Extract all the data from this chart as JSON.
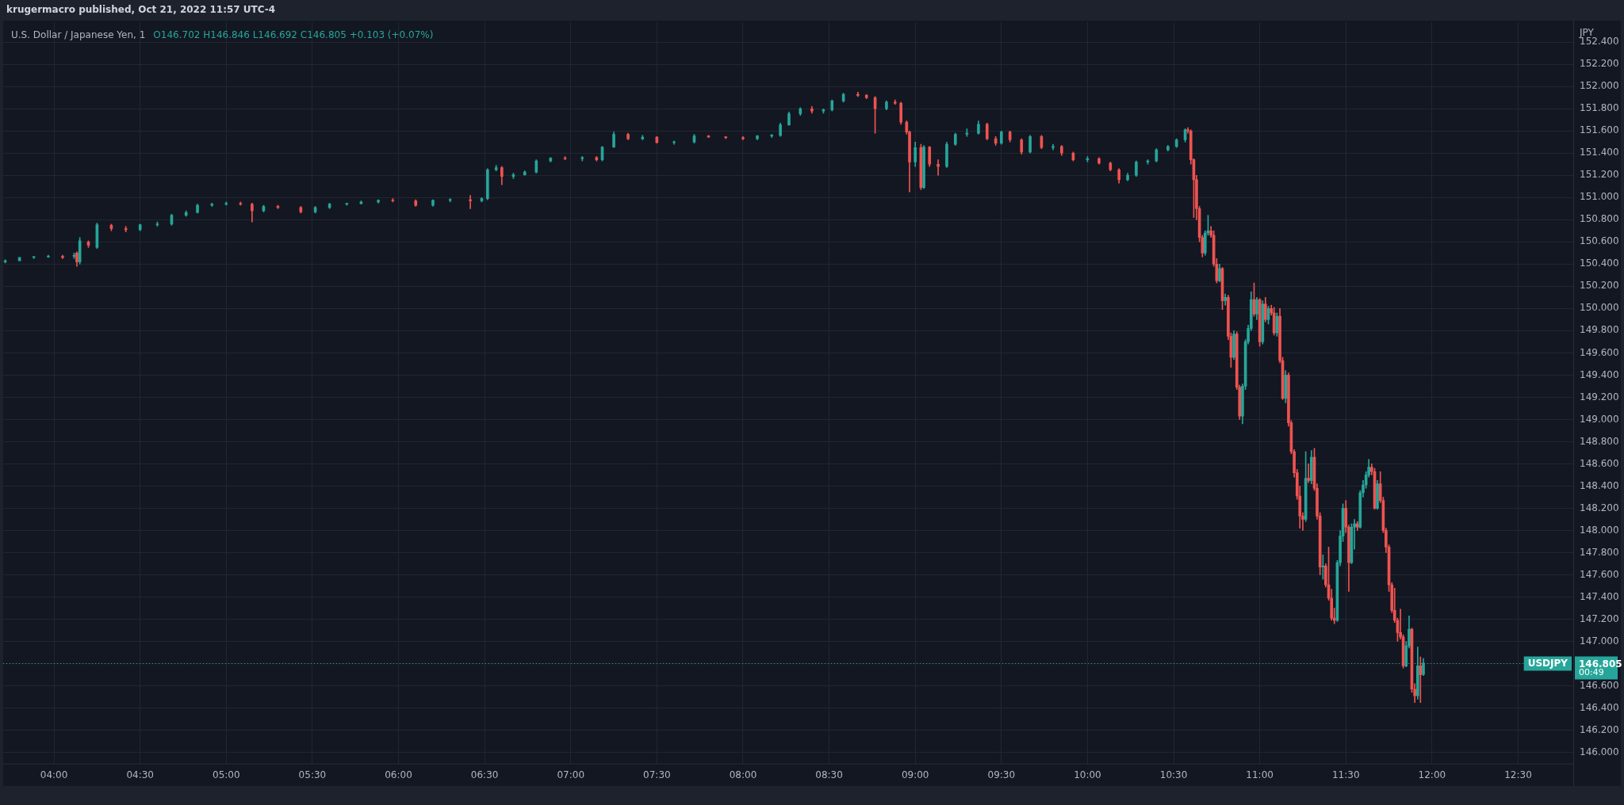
{
  "chart_data": {
    "type": "candlestick",
    "title": "U.S. Dollar / Japanese Yen, 1",
    "ylabel": "JPY",
    "annotations": [
      "krugermacro published, Oct 21, 2022 11:57 UTC-4",
      "O146.702 H146.846 L146.692 C146.805 +0.103 (+0.07%)",
      "00:49",
      "146.805"
    ],
    "x": [
      3.717,
      3.8,
      3.883,
      3.967,
      4.05,
      4.117,
      4.133,
      4.15,
      4.2,
      4.25,
      4.333,
      4.417,
      4.5,
      4.6,
      4.683,
      4.767,
      4.833,
      4.917,
      5.0,
      5.083,
      5.15,
      5.217,
      5.3,
      5.433,
      5.517,
      5.6,
      5.7,
      5.783,
      5.883,
      5.967,
      6.1,
      6.2,
      6.3,
      6.417,
      6.483,
      6.517,
      6.567,
      6.6,
      6.667,
      6.733,
      6.8,
      6.883,
      6.967,
      7.067,
      7.15,
      7.183,
      7.25,
      7.333,
      7.417,
      7.5,
      7.6,
      7.717,
      7.8,
      7.9,
      8.0,
      8.083,
      8.167,
      8.217,
      8.267,
      8.333,
      8.4,
      8.467,
      8.517,
      8.583,
      8.667,
      8.717,
      8.767,
      8.833,
      8.883,
      8.917,
      8.95,
      8.967,
      9.0,
      9.033,
      9.05,
      9.083,
      9.133,
      9.183,
      9.233,
      9.3,
      9.367,
      9.417,
      9.467,
      9.5,
      9.55,
      9.617,
      9.667,
      9.733,
      9.8,
      9.85,
      9.917,
      10.0,
      10.067,
      10.133,
      10.183,
      10.233,
      10.283,
      10.35,
      10.4,
      10.467,
      10.517,
      10.567,
      10.583,
      10.6,
      10.617,
      10.633,
      10.65,
      10.667,
      10.683,
      10.7,
      10.717,
      10.733,
      10.75,
      10.767,
      10.783,
      10.8,
      10.817,
      10.833,
      10.85,
      10.867,
      10.883,
      10.9,
      10.917,
      10.933,
      10.95,
      10.967,
      10.983,
      11.0,
      11.017,
      11.033,
      11.05,
      11.067,
      11.083,
      11.1,
      11.117,
      11.133,
      11.15,
      11.167,
      11.183,
      11.2,
      11.217,
      11.233,
      11.25,
      11.267,
      11.283,
      11.3,
      11.317,
      11.333,
      11.35,
      11.367,
      11.383,
      11.4,
      11.417,
      11.433,
      11.45,
      11.467,
      11.483,
      11.5,
      11.517,
      11.533,
      11.55,
      11.567,
      11.583,
      11.6,
      11.617,
      11.633,
      11.65,
      11.667,
      11.683,
      11.7,
      11.717,
      11.733,
      11.75,
      11.767,
      11.783,
      11.8,
      11.817,
      11.833,
      11.85,
      11.867,
      11.883,
      11.9,
      11.917,
      11.933,
      11.95
    ],
    "ohlc": [
      [
        150.42,
        150.44,
        150.41,
        150.43
      ],
      [
        150.43,
        150.46,
        150.43,
        150.46
      ],
      [
        150.46,
        150.47,
        150.45,
        150.465
      ],
      [
        150.465,
        150.48,
        150.46,
        150.47
      ],
      [
        150.47,
        150.48,
        150.45,
        150.46
      ],
      [
        150.47,
        150.5,
        150.45,
        150.48
      ],
      [
        150.5,
        150.51,
        150.38,
        150.42
      ],
      [
        150.42,
        150.64,
        150.4,
        150.61
      ],
      [
        150.6,
        150.61,
        150.55,
        150.57
      ],
      [
        150.55,
        150.77,
        150.54,
        150.755
      ],
      [
        150.75,
        150.76,
        150.7,
        150.72
      ],
      [
        150.72,
        150.74,
        150.69,
        150.71
      ],
      [
        150.71,
        150.76,
        150.7,
        150.755
      ],
      [
        150.755,
        150.78,
        150.74,
        150.76
      ],
      [
        150.76,
        150.85,
        150.75,
        150.84
      ],
      [
        150.84,
        150.88,
        150.83,
        150.865
      ],
      [
        150.865,
        150.94,
        150.86,
        150.93
      ],
      [
        150.93,
        150.95,
        150.92,
        150.94
      ],
      [
        150.94,
        150.96,
        150.93,
        150.945
      ],
      [
        150.945,
        150.96,
        150.93,
        150.94
      ],
      [
        150.94,
        150.95,
        150.78,
        150.88
      ],
      [
        150.88,
        150.93,
        150.87,
        150.92
      ],
      [
        150.92,
        150.93,
        150.9,
        150.91
      ],
      [
        150.91,
        150.92,
        150.86,
        150.87
      ],
      [
        150.87,
        150.92,
        150.86,
        150.91
      ],
      [
        150.91,
        150.95,
        150.9,
        150.94
      ],
      [
        150.94,
        150.95,
        150.93,
        150.945
      ],
      [
        150.945,
        150.97,
        150.94,
        150.96
      ],
      [
        150.96,
        150.98,
        150.95,
        150.975
      ],
      [
        150.975,
        150.99,
        150.96,
        150.97
      ],
      [
        150.97,
        150.98,
        150.92,
        150.93
      ],
      [
        150.93,
        150.98,
        150.92,
        150.975
      ],
      [
        150.975,
        150.99,
        150.96,
        150.98
      ],
      [
        150.98,
        151.02,
        150.9,
        150.97
      ],
      [
        150.97,
        151.0,
        150.96,
        150.99
      ],
      [
        150.99,
        151.26,
        150.98,
        151.25
      ],
      [
        151.25,
        151.29,
        151.24,
        151.27
      ],
      [
        151.27,
        151.28,
        151.115,
        151.19
      ],
      [
        151.19,
        151.22,
        151.17,
        151.205
      ],
      [
        151.205,
        151.24,
        151.2,
        151.23
      ],
      [
        151.23,
        151.34,
        151.22,
        151.33
      ],
      [
        151.33,
        151.36,
        151.32,
        151.355
      ],
      [
        151.355,
        151.37,
        151.34,
        151.35
      ],
      [
        151.35,
        151.37,
        151.33,
        151.36
      ],
      [
        151.36,
        151.37,
        151.33,
        151.34
      ],
      [
        151.34,
        151.46,
        151.33,
        151.455
      ],
      [
        151.455,
        151.59,
        151.45,
        151.57
      ],
      [
        151.57,
        151.58,
        151.52,
        151.53
      ],
      [
        151.53,
        151.56,
        151.52,
        151.545
      ],
      [
        151.545,
        151.55,
        151.49,
        151.495
      ],
      [
        151.495,
        151.51,
        151.48,
        151.5
      ],
      [
        151.5,
        151.57,
        151.49,
        151.555
      ],
      [
        151.555,
        151.56,
        151.54,
        151.545
      ],
      [
        151.545,
        151.55,
        151.53,
        151.54
      ],
      [
        151.54,
        151.55,
        151.52,
        151.53
      ],
      [
        151.53,
        151.56,
        151.52,
        151.555
      ],
      [
        151.555,
        151.57,
        151.54,
        151.56
      ],
      [
        151.56,
        151.67,
        151.55,
        151.655
      ],
      [
        151.655,
        151.77,
        151.65,
        151.755
      ],
      [
        151.755,
        151.81,
        151.74,
        151.8
      ],
      [
        151.8,
        151.82,
        151.76,
        151.78
      ],
      [
        151.78,
        151.8,
        151.76,
        151.79
      ],
      [
        151.79,
        151.88,
        151.78,
        151.87
      ],
      [
        151.87,
        151.94,
        151.86,
        151.93
      ],
      [
        151.93,
        151.95,
        151.91,
        151.92
      ],
      [
        151.92,
        151.93,
        151.89,
        151.9
      ],
      [
        151.9,
        151.91,
        151.58,
        151.8
      ],
      [
        151.8,
        151.87,
        151.79,
        151.86
      ],
      [
        151.86,
        151.88,
        151.84,
        151.85
      ],
      [
        151.85,
        151.86,
        151.66,
        151.68
      ],
      [
        151.68,
        151.69,
        151.57,
        151.59
      ],
      [
        151.59,
        151.6,
        151.05,
        151.32
      ],
      [
        151.32,
        151.5,
        151.28,
        151.45
      ],
      [
        151.45,
        151.48,
        151.07,
        151.09
      ],
      [
        151.09,
        151.47,
        151.08,
        151.455
      ],
      [
        151.455,
        151.46,
        151.28,
        151.3
      ],
      [
        151.3,
        151.34,
        151.2,
        151.28
      ],
      [
        151.28,
        151.5,
        151.27,
        151.48
      ],
      [
        151.48,
        151.58,
        151.47,
        151.57
      ],
      [
        151.57,
        151.62,
        151.55,
        151.58
      ],
      [
        151.58,
        151.69,
        151.57,
        151.66
      ],
      [
        151.66,
        151.67,
        151.52,
        151.53
      ],
      [
        151.53,
        151.55,
        151.47,
        151.49
      ],
      [
        151.49,
        151.6,
        151.48,
        151.59
      ],
      [
        151.59,
        151.6,
        151.5,
        151.52
      ],
      [
        151.52,
        151.53,
        151.39,
        151.41
      ],
      [
        151.41,
        151.56,
        151.4,
        151.55
      ],
      [
        151.55,
        151.56,
        151.44,
        151.45
      ],
      [
        151.45,
        151.48,
        151.43,
        151.46
      ],
      [
        151.46,
        151.47,
        151.38,
        151.4
      ],
      [
        151.4,
        151.41,
        151.33,
        151.34
      ],
      [
        151.34,
        151.37,
        151.32,
        151.35
      ],
      [
        151.35,
        151.36,
        151.3,
        151.31
      ],
      [
        151.31,
        151.32,
        151.24,
        151.25
      ],
      [
        151.25,
        151.26,
        151.13,
        151.16
      ],
      [
        151.16,
        151.22,
        151.15,
        151.2
      ],
      [
        151.2,
        151.33,
        151.19,
        151.32
      ],
      [
        151.32,
        151.34,
        151.3,
        151.33
      ],
      [
        151.33,
        151.44,
        151.32,
        151.43
      ],
      [
        151.43,
        151.47,
        151.42,
        151.46
      ],
      [
        151.46,
        151.53,
        151.45,
        151.52
      ],
      [
        151.52,
        151.62,
        151.5,
        151.61
      ],
      [
        151.61,
        151.63,
        151.58,
        151.6
      ],
      [
        151.6,
        151.61,
        151.3,
        151.34
      ],
      [
        151.34,
        151.35,
        150.82,
        151.16
      ],
      [
        151.16,
        151.2,
        150.8,
        150.9
      ],
      [
        150.9,
        150.92,
        150.6,
        150.64
      ],
      [
        150.64,
        150.66,
        150.465,
        150.5
      ],
      [
        150.5,
        150.7,
        150.48,
        150.68
      ],
      [
        150.68,
        150.84,
        150.66,
        150.7
      ],
      [
        150.7,
        150.74,
        150.64,
        150.66
      ],
      [
        150.66,
        150.7,
        150.38,
        150.4
      ],
      [
        150.4,
        150.45,
        150.23,
        150.25
      ],
      [
        150.25,
        150.4,
        150.24,
        150.36
      ],
      [
        150.36,
        150.37,
        149.99,
        150.07
      ],
      [
        150.07,
        150.13,
        150.03,
        150.1
      ],
      [
        150.1,
        150.12,
        149.72,
        149.75
      ],
      [
        149.75,
        149.78,
        149.47,
        149.56
      ],
      [
        149.56,
        149.8,
        149.54,
        149.77
      ],
      [
        149.77,
        149.79,
        149.27,
        149.29
      ],
      [
        149.29,
        149.31,
        149.0,
        149.03
      ],
      [
        149.03,
        149.32,
        148.96,
        149.3
      ],
      [
        149.3,
        149.72,
        149.27,
        149.7
      ],
      [
        149.7,
        149.85,
        149.68,
        149.82
      ],
      [
        149.82,
        150.15,
        149.8,
        150.08
      ],
      [
        150.08,
        150.23,
        149.93,
        149.95
      ],
      [
        149.95,
        150.1,
        149.9,
        150.08
      ],
      [
        150.08,
        150.09,
        149.66,
        149.7
      ],
      [
        149.7,
        150.07,
        149.68,
        150.04
      ],
      [
        150.04,
        150.1,
        149.88,
        149.9
      ],
      [
        149.9,
        150.02,
        149.86,
        150.0
      ],
      [
        150.0,
        150.03,
        149.94,
        149.96
      ],
      [
        149.96,
        150.01,
        149.76,
        149.78
      ],
      [
        149.78,
        149.96,
        149.75,
        149.93
      ],
      [
        149.93,
        150.0,
        149.51,
        149.53
      ],
      [
        149.53,
        149.56,
        149.18,
        149.19
      ],
      [
        149.19,
        149.44,
        149.15,
        149.4
      ],
      [
        149.4,
        149.42,
        148.94,
        148.97
      ],
      [
        148.97,
        148.99,
        148.69,
        148.71
      ],
      [
        148.71,
        148.73,
        148.48,
        148.52
      ],
      [
        148.52,
        148.55,
        148.28,
        148.31
      ],
      [
        148.31,
        148.4,
        148.02,
        148.13
      ],
      [
        148.13,
        148.16,
        148.0,
        148.1
      ],
      [
        148.1,
        148.71,
        148.08,
        148.47
      ],
      [
        148.47,
        148.6,
        148.43,
        148.45
      ],
      [
        148.45,
        148.72,
        148.42,
        148.66
      ],
      [
        148.66,
        148.74,
        148.36,
        148.38
      ],
      [
        148.38,
        148.42,
        148.1,
        148.13
      ],
      [
        148.13,
        148.16,
        147.6,
        147.67
      ],
      [
        147.67,
        147.78,
        147.56,
        147.68
      ],
      [
        147.68,
        147.7,
        147.49,
        147.51
      ],
      [
        147.51,
        147.85,
        147.37,
        147.39
      ],
      [
        147.39,
        147.47,
        147.19,
        147.21
      ],
      [
        147.21,
        147.3,
        147.16,
        147.19
      ],
      [
        147.19,
        147.73,
        147.18,
        147.71
      ],
      [
        147.71,
        148.0,
        147.68,
        147.95
      ],
      [
        147.95,
        148.24,
        147.9,
        148.2
      ],
      [
        148.2,
        148.27,
        147.98,
        148.03
      ],
      [
        148.03,
        148.05,
        147.45,
        147.71
      ],
      [
        147.71,
        148.06,
        147.7,
        148.03
      ],
      [
        148.03,
        148.1,
        147.83,
        148.06
      ],
      [
        148.06,
        148.08,
        148.0,
        148.03
      ],
      [
        148.03,
        148.36,
        148.02,
        148.34
      ],
      [
        148.34,
        148.45,
        148.3,
        148.41
      ],
      [
        148.41,
        148.53,
        148.38,
        148.5
      ],
      [
        148.5,
        148.64,
        148.48,
        148.57
      ],
      [
        148.57,
        148.6,
        148.5,
        148.53
      ],
      [
        148.53,
        148.56,
        148.19,
        148.2
      ],
      [
        148.2,
        148.45,
        148.19,
        148.42
      ],
      [
        148.42,
        148.53,
        148.25,
        148.27
      ],
      [
        148.27,
        148.3,
        147.98,
        148.0
      ],
      [
        148.0,
        148.02,
        147.8,
        147.85
      ],
      [
        147.85,
        147.87,
        147.45,
        147.51
      ],
      [
        147.51,
        147.53,
        147.26,
        147.28
      ],
      [
        147.28,
        147.48,
        147.17,
        147.19
      ],
      [
        147.19,
        147.21,
        147.0,
        147.08
      ],
      [
        147.08,
        147.29,
        147.02,
        147.04
      ],
      [
        147.04,
        147.06,
        146.76,
        146.78
      ],
      [
        146.78,
        147.0,
        146.77,
        146.96
      ],
      [
        146.96,
        147.23,
        146.94,
        147.11
      ],
      [
        147.11,
        147.12,
        146.54,
        146.57
      ],
      [
        146.57,
        146.62,
        146.45,
        146.51
      ],
      [
        146.51,
        146.95,
        146.48,
        146.78
      ],
      [
        146.78,
        146.86,
        146.45,
        146.7
      ],
      [
        146.702,
        146.846,
        146.692,
        146.805
      ]
    ],
    "xlim": [
      3.705,
      12.82
    ],
    "xticks": [
      {
        "value": 4,
        "label": "04:00"
      },
      {
        "value": 4.5,
        "label": "04:30"
      },
      {
        "value": 5,
        "label": "05:00"
      },
      {
        "value": 5.5,
        "label": "05:30"
      },
      {
        "value": 6,
        "label": "06:00"
      },
      {
        "value": 6.5,
        "label": "06:30"
      },
      {
        "value": 7,
        "label": "07:00"
      },
      {
        "value": 7.5,
        "label": "07:30"
      },
      {
        "value": 8,
        "label": "08:00"
      },
      {
        "value": 8.5,
        "label": "08:30"
      },
      {
        "value": 9,
        "label": "09:00"
      },
      {
        "value": 9.5,
        "label": "09:30"
      },
      {
        "value": 10,
        "label": "10:00"
      },
      {
        "value": 10.5,
        "label": "10:30"
      },
      {
        "value": 11,
        "label": "11:00"
      },
      {
        "value": 11.5,
        "label": "11:30"
      },
      {
        "value": 12,
        "label": "12:00"
      },
      {
        "value": 12.5,
        "label": "12:30"
      }
    ],
    "ylim": [
      145.9,
      152.58
    ],
    "yticks": [
      {
        "value": 146,
        "label": "146.000"
      },
      {
        "value": 146.2,
        "label": "146.200"
      },
      {
        "value": 146.4,
        "label": "146.400"
      },
      {
        "value": 146.6,
        "label": "146.600"
      },
      {
        "value": 146.8,
        "label": null
      },
      {
        "value": 147,
        "label": "147.000"
      },
      {
        "value": 147.2,
        "label": "147.200"
      },
      {
        "value": 147.4,
        "label": "147.400"
      },
      {
        "value": 147.6,
        "label": "147.600"
      },
      {
        "value": 147.8,
        "label": "147.800"
      },
      {
        "value": 148,
        "label": "148.000"
      },
      {
        "value": 148.2,
        "label": "148.200"
      },
      {
        "value": 148.4,
        "label": "148.400"
      },
      {
        "value": 148.6,
        "label": "148.600"
      },
      {
        "value": 148.8,
        "label": "148.800"
      },
      {
        "value": 149,
        "label": "149.000"
      },
      {
        "value": 149.2,
        "label": "149.200"
      },
      {
        "value": 149.4,
        "label": "149.400"
      },
      {
        "value": 149.6,
        "label": "149.600"
      },
      {
        "value": 149.8,
        "label": "149.800"
      },
      {
        "value": 150,
        "label": "150.000"
      },
      {
        "value": 150.2,
        "label": "150.200"
      },
      {
        "value": 150.4,
        "label": "150.400"
      },
      {
        "value": 150.6,
        "label": "150.600"
      },
      {
        "value": 150.8,
        "label": "150.800"
      },
      {
        "value": 151,
        "label": "151.000"
      },
      {
        "value": 151.2,
        "label": "151.200"
      },
      {
        "value": 151.4,
        "label": "151.400"
      },
      {
        "value": 151.6,
        "label": "151.600"
      },
      {
        "value": 151.8,
        "label": "151.800"
      },
      {
        "value": 152,
        "label": "152.000"
      },
      {
        "value": 152.2,
        "label": "152.200"
      },
      {
        "value": 152.4,
        "label": "152.400"
      }
    ],
    "ref_lines": [
      {
        "axis": "y",
        "value": 146.805,
        "label": "USDJPY",
        "color": "#26a69a",
        "line_style": "dotted"
      }
    ],
    "grid": true,
    "legend": false
  }
}
